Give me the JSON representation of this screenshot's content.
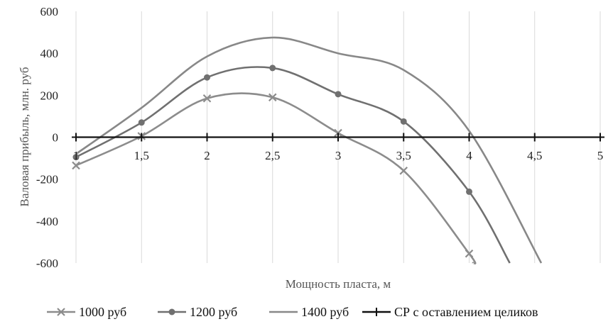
{
  "chart_data": {
    "type": "line",
    "xlabel": "Мощность пласта, м",
    "ylabel": "Валовая прибыль, млн. руб",
    "x": [
      1,
      1.5,
      2,
      2.5,
      3,
      3.5,
      4,
      4.5,
      5
    ],
    "x_tick_labels": [
      "1",
      "1,5",
      "2",
      "2,5",
      "3",
      "3,5",
      "4",
      "4,5",
      "5"
    ],
    "ylim": [
      -600,
      600
    ],
    "y_ticks": [
      600,
      400,
      200,
      0,
      -200,
      -400,
      -600
    ],
    "y_tick_labels": [
      "600",
      "400",
      "200",
      "0",
      "-200",
      "-400",
      "-600"
    ],
    "legend_position": "bottom",
    "grid": "vertical",
    "series": [
      {
        "name": "1000 руб",
        "color": "#8c8c8c",
        "marker": "x",
        "points": [
          [
            1,
            -135
          ],
          [
            1.5,
            5
          ],
          [
            2,
            185
          ],
          [
            2.5,
            190
          ],
          [
            3,
            20
          ],
          [
            3.5,
            -160
          ],
          [
            4,
            -555
          ],
          [
            4.03,
            -600
          ]
        ]
      },
      {
        "name": "1200 руб",
        "color": "#707070",
        "marker": "circle",
        "points": [
          [
            1,
            -95
          ],
          [
            1.5,
            70
          ],
          [
            2,
            285
          ],
          [
            2.5,
            330
          ],
          [
            3,
            205
          ],
          [
            3.5,
            75
          ],
          [
            4,
            -260
          ],
          [
            4.31,
            -600
          ]
        ]
      },
      {
        "name": "1400 руб",
        "color": "#888888",
        "marker": "none",
        "points": [
          [
            1,
            -80
          ],
          [
            1.5,
            140
          ],
          [
            2,
            385
          ],
          [
            2.5,
            475
          ],
          [
            3,
            400
          ],
          [
            3.5,
            320
          ],
          [
            4,
            30
          ],
          [
            4.55,
            -600
          ]
        ]
      },
      {
        "name": "СР с оставлением целиков",
        "color": "#111111",
        "marker": "plus",
        "points": [
          [
            1,
            0
          ],
          [
            1.5,
            0
          ],
          [
            2,
            0
          ],
          [
            2.5,
            0
          ],
          [
            3,
            0
          ],
          [
            3.5,
            0
          ],
          [
            4,
            0
          ],
          [
            4.5,
            0
          ],
          [
            5,
            0
          ]
        ]
      }
    ]
  }
}
